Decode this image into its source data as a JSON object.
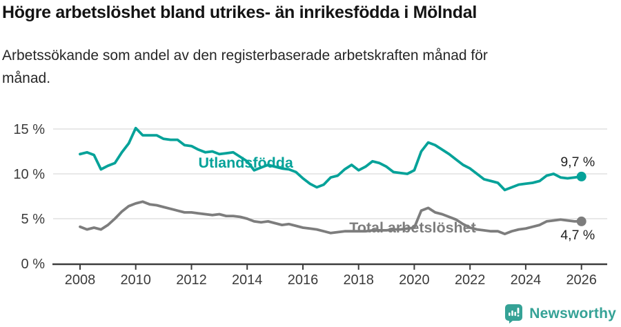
{
  "header": {
    "title": "Högre arbetslöshet bland utrikes- än inrikesfödda i Mölndal",
    "subtitle_line1": "Arbetssökande som andel av den registerbaserade arbetskraften månad för",
    "subtitle_line2": "månad."
  },
  "chart_data": {
    "type": "line",
    "title": "Högre arbetslöshet bland utrikes- än inrikesfödda i Mölndal",
    "subtitle": "Arbetssökande som andel av den registerbaserade arbetskraften månad för månad.",
    "x_unit": "year (monthly series, digitized quarterly)",
    "grid": true,
    "legend_position": "inline-labels-on-lines",
    "ylim": [
      0,
      16
    ],
    "xlim": [
      2007.9,
      2026.9
    ],
    "yticks": [
      {
        "value": 0,
        "label": "0 %"
      },
      {
        "value": 5,
        "label": "5 %"
      },
      {
        "value": 10,
        "label": "10 %"
      },
      {
        "value": 15,
        "label": "15 %"
      }
    ],
    "xticks": [
      {
        "value": 2008,
        "label": "2008"
      },
      {
        "value": 2010,
        "label": "2010"
      },
      {
        "value": 2012,
        "label": "2012"
      },
      {
        "value": 2014,
        "label": "2014"
      },
      {
        "value": 2016,
        "label": "2016"
      },
      {
        "value": 2018,
        "label": "2018"
      },
      {
        "value": 2020,
        "label": "2020"
      },
      {
        "value": 2022,
        "label": "2022"
      },
      {
        "value": 2024,
        "label": "2024"
      },
      {
        "value": 2026,
        "label": "2026"
      }
    ],
    "x": [
      2008,
      2008.25,
      2008.5,
      2008.75,
      2009,
      2009.25,
      2009.5,
      2009.75,
      2010,
      2010.25,
      2010.5,
      2010.75,
      2011,
      2011.25,
      2011.5,
      2011.75,
      2012,
      2012.25,
      2012.5,
      2012.75,
      2013,
      2013.25,
      2013.5,
      2013.75,
      2014,
      2014.25,
      2014.5,
      2014.75,
      2015,
      2015.25,
      2015.5,
      2015.75,
      2016,
      2016.25,
      2016.5,
      2016.75,
      2017,
      2017.25,
      2017.5,
      2017.75,
      2018,
      2018.25,
      2018.5,
      2018.75,
      2019,
      2019.25,
      2019.5,
      2019.75,
      2020,
      2020.25,
      2020.5,
      2020.75,
      2021,
      2021.25,
      2021.5,
      2021.75,
      2022,
      2022.25,
      2022.5,
      2022.75,
      2023,
      2023.25,
      2023.5,
      2023.75,
      2024,
      2024.25,
      2024.5,
      2024.75,
      2025,
      2025.25,
      2025.5,
      2025.75,
      2026
    ],
    "series": [
      {
        "name": "Utlandsfödda",
        "color": "#05a299",
        "values": [
          12.2,
          12.4,
          12.1,
          10.5,
          10.9,
          11.2,
          12.4,
          13.4,
          15.1,
          14.3,
          14.3,
          14.3,
          13.9,
          13.8,
          13.8,
          13.2,
          13.1,
          12.7,
          12.4,
          12.5,
          12.2,
          12.3,
          12.4,
          11.9,
          11.4,
          10.4,
          10.7,
          11.0,
          10.8,
          10.6,
          10.5,
          10.2,
          9.5,
          8.9,
          8.5,
          8.8,
          9.6,
          9.8,
          10.5,
          11.0,
          10.4,
          10.8,
          11.4,
          11.2,
          10.8,
          10.2,
          10.1,
          10.0,
          10.4,
          12.5,
          13.5,
          13.2,
          12.7,
          12.2,
          11.6,
          11.0,
          10.6,
          10.0,
          9.4,
          9.2,
          9.0,
          8.2,
          8.5,
          8.8,
          8.9,
          9.0,
          9.2,
          9.8,
          10.0,
          9.6,
          9.5,
          9.6,
          9.7
        ],
        "end_value": 9.7,
        "end_label": "9,7 %",
        "end_label_position": "above",
        "inline_label": {
          "text": "Utlandsfödda",
          "at_year": 2013.95,
          "at_value": 10.7
        }
      },
      {
        "name": "Total arbetslöshet",
        "color": "#7d7d7d",
        "values": [
          4.1,
          3.8,
          4.0,
          3.8,
          4.3,
          5.0,
          5.8,
          6.4,
          6.7,
          6.9,
          6.6,
          6.5,
          6.3,
          6.1,
          5.9,
          5.7,
          5.7,
          5.6,
          5.5,
          5.4,
          5.5,
          5.3,
          5.3,
          5.2,
          5.0,
          4.7,
          4.6,
          4.7,
          4.5,
          4.3,
          4.4,
          4.2,
          4.0,
          3.9,
          3.8,
          3.6,
          3.4,
          3.5,
          3.6,
          3.6,
          3.6,
          3.6,
          3.7,
          3.7,
          3.7,
          3.8,
          3.8,
          3.9,
          4.0,
          5.9,
          6.2,
          5.7,
          5.5,
          5.2,
          4.9,
          4.4,
          4.0,
          3.8,
          3.7,
          3.6,
          3.6,
          3.3,
          3.6,
          3.8,
          3.9,
          4.1,
          4.3,
          4.7,
          4.8,
          4.9,
          4.8,
          4.7,
          4.7
        ],
        "end_value": 4.7,
        "end_label": "4,7 %",
        "end_label_position": "below",
        "inline_label": {
          "text": "Total arbetslöshet",
          "at_year": 2019.94,
          "at_value": 3.46
        }
      }
    ]
  },
  "footer": {
    "brand": "Newsworthy",
    "logo_icon": "bar-chart-speech-bubble-icon"
  },
  "colors": {
    "accent_teal": "#05a299",
    "series_gray": "#7d7d7d",
    "axis": "#3c3c3c",
    "grid": "#d9d9d9",
    "tick_text": "#3a3a3a",
    "value_label_text": "#222222",
    "logo_teal": "#35a296"
  }
}
